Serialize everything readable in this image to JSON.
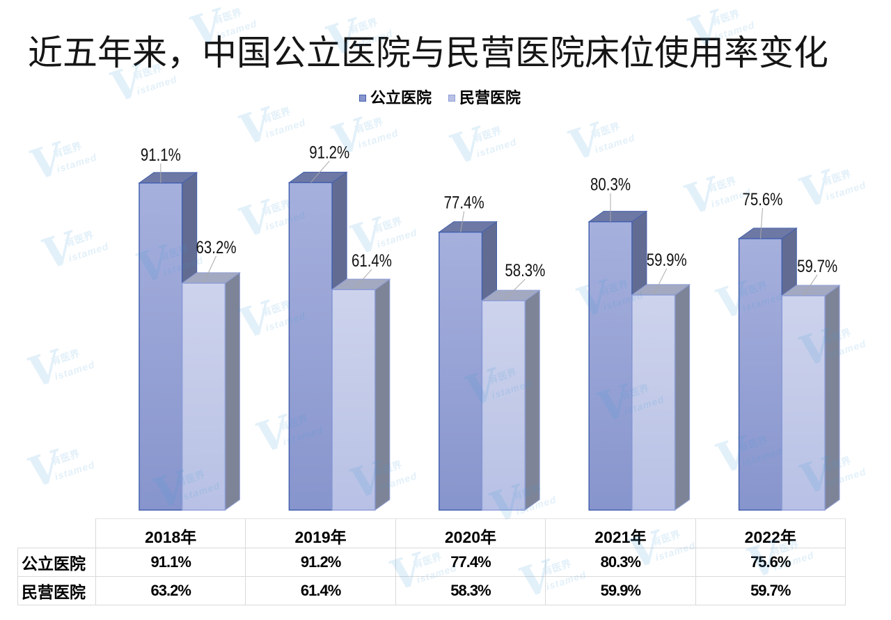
{
  "chart_data": {
    "type": "bar",
    "three_d": true,
    "title": "近五年来，中国公立医院与民营医院床位使用率变化",
    "categories": [
      "2018年",
      "2019年",
      "2020年",
      "2021年",
      "2022年"
    ],
    "series": [
      {
        "name": "公立医院",
        "values": [
          91.1,
          91.2,
          77.4,
          80.3,
          75.6
        ],
        "labels": [
          "91.1%",
          "91.2%",
          "77.4%",
          "80.3%",
          "75.6%"
        ],
        "colors": {
          "front_top": "#a6b0dd",
          "front_bottom": "#8795cd",
          "side": "#626c92",
          "top": "#6d78a4",
          "stroke": "#4360ae"
        }
      },
      {
        "name": "民营医院",
        "values": [
          63.2,
          61.4,
          58.3,
          59.9,
          59.7
        ],
        "labels": [
          "63.2%",
          "61.4%",
          "58.3%",
          "59.9%",
          "59.7%"
        ],
        "colors": {
          "front_top": "#cdd3ec",
          "front_bottom": "#b8c1e5",
          "side": "#7e8497",
          "top": "#a3a9c0",
          "stroke": "#8e9ed8"
        }
      }
    ],
    "ylim": [
      0,
      100
    ],
    "legend_position": "top",
    "grid": false,
    "axes_visible": false,
    "data_table": true
  },
  "watermark": {
    "mark": "V",
    "cn": "有医界",
    "en": "istamed"
  }
}
